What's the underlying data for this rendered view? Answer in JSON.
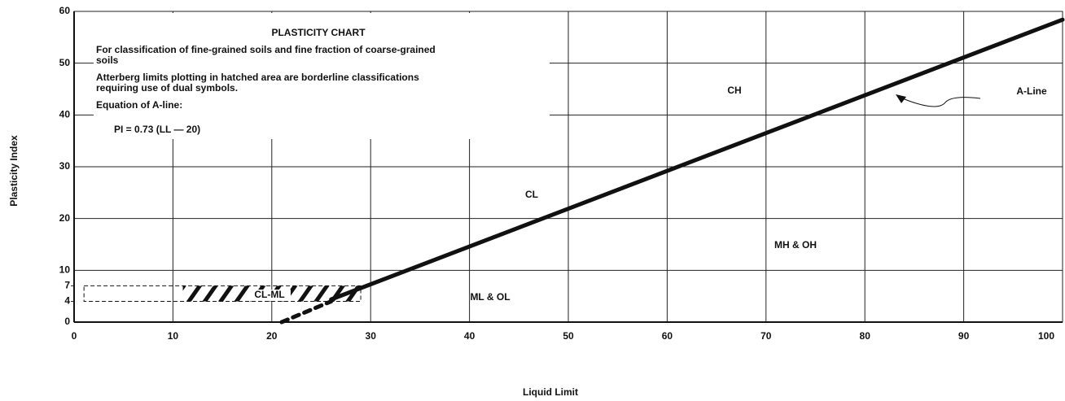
{
  "chart_data": {
    "type": "line",
    "title": "PLASTICITY CHART",
    "notes": [
      [
        "For classification of fine-grained soils and fine fraction of coarse-grained",
        "soils"
      ],
      [
        "Atterberg limits plotting in hatched area are borderline classifications",
        "requiring use of dual symbols."
      ],
      [
        "Equation of A-line:"
      ]
    ],
    "equation": "PI = 0.73 (LL — 20)",
    "x_label": "Liquid Limit",
    "y_label": "Plasticity Index",
    "xlim": [
      0,
      100
    ],
    "ylim": [
      0,
      60
    ],
    "xticks": [
      0,
      10,
      20,
      30,
      40,
      50,
      60,
      70,
      80,
      90,
      100
    ],
    "yticks": [
      0,
      4,
      7,
      10,
      20,
      30,
      40,
      50,
      60
    ],
    "grid": true,
    "series": [
      {
        "name": "A-Line",
        "color": "#111111",
        "dashed": false,
        "x": [
          26,
          100
        ],
        "values": [
          4.38,
          58.4
        ]
      },
      {
        "color": "#111111",
        "dashed": true,
        "x": [
          21,
          26
        ],
        "values": [
          0,
          4
        ]
      }
    ],
    "zone": {
      "label": "CL-ML",
      "dashed_x": [
        1,
        29
      ],
      "hatched_x": [
        11,
        29
      ],
      "y": [
        4,
        7
      ]
    },
    "regions": [
      "CH",
      "CL",
      "MH & OH",
      "ML & OL"
    ]
  }
}
